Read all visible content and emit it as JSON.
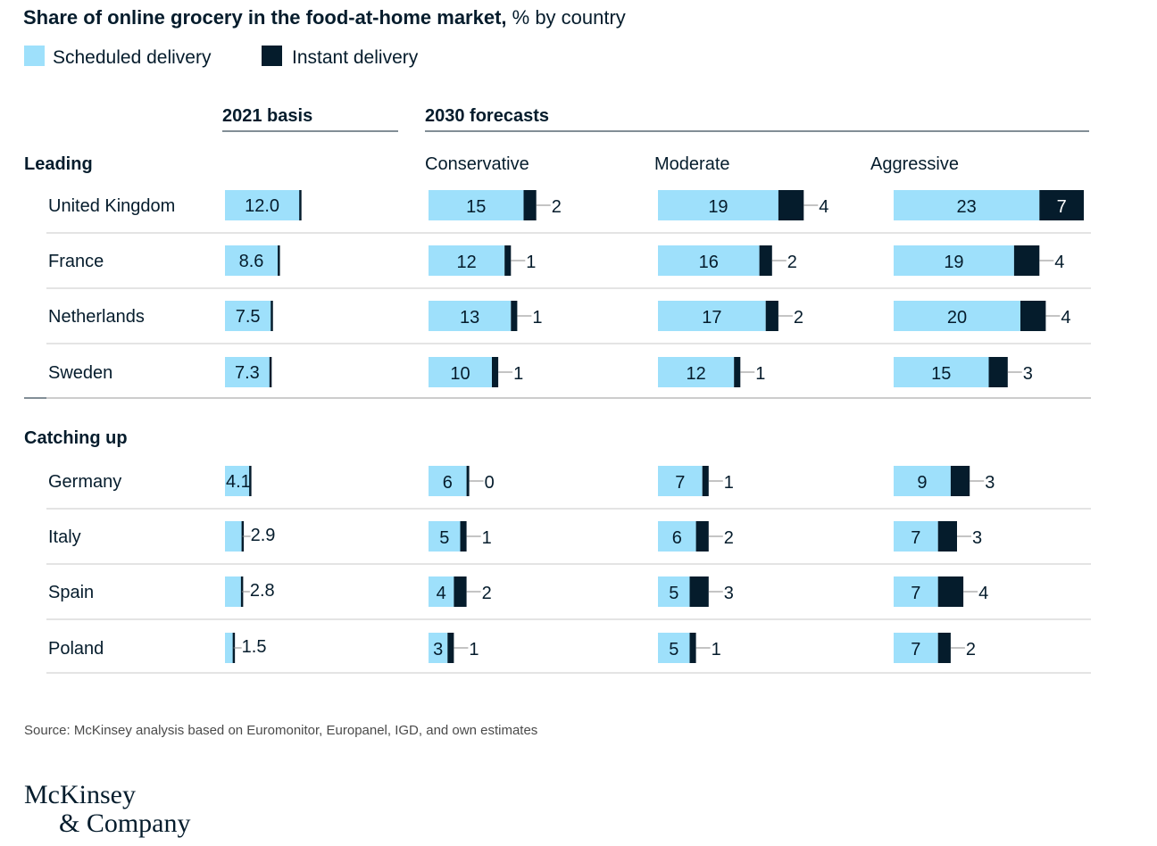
{
  "title": {
    "bold": "Share of online grocery in the food-at-home market,",
    "light": " % by country"
  },
  "legend": [
    {
      "name": "Scheduled delivery",
      "color": "#9ee0fb"
    },
    {
      "name": "Instant delivery",
      "color": "#051c2c"
    }
  ],
  "column_headers": {
    "basis": "2021 basis",
    "forecasts": "2030 forecasts"
  },
  "scenarios": [
    "Conservative",
    "Moderate",
    "Aggressive"
  ],
  "source": "Source: McKinsey analysis based on Euromonitor, Europanel, IGD, and own estimates",
  "logo": {
    "line1": "McKinsey",
    "line2": "& Company"
  },
  "chart_data": {
    "type": "bar",
    "stacked": true,
    "unit": "%",
    "colors": {
      "scheduled": "#9ee0fb",
      "instant": "#051c2c"
    },
    "groups": [
      {
        "name": "Leading",
        "countries": [
          {
            "name": "United Kingdom",
            "basis": "12.0",
            "conservative": [
              15,
              2
            ],
            "moderate": [
              19,
              4
            ],
            "aggressive": [
              23,
              7
            ]
          },
          {
            "name": "France",
            "basis": "8.6",
            "conservative": [
              12,
              1
            ],
            "moderate": [
              16,
              2
            ],
            "aggressive": [
              19,
              4
            ]
          },
          {
            "name": "Netherlands",
            "basis": "7.5",
            "conservative": [
              13,
              1
            ],
            "moderate": [
              17,
              2
            ],
            "aggressive": [
              20,
              4
            ]
          },
          {
            "name": "Sweden",
            "basis": "7.3",
            "conservative": [
              10,
              1
            ],
            "moderate": [
              12,
              1
            ],
            "aggressive": [
              15,
              3
            ]
          }
        ]
      },
      {
        "name": "Catching up",
        "countries": [
          {
            "name": "Germany",
            "basis": "4.1",
            "conservative": [
              6,
              0
            ],
            "moderate": [
              7,
              1
            ],
            "aggressive": [
              9,
              3
            ]
          },
          {
            "name": "Italy",
            "basis": "2.9",
            "conservative": [
              5,
              1
            ],
            "moderate": [
              6,
              2
            ],
            "aggressive": [
              7,
              3
            ]
          },
          {
            "name": "Spain",
            "basis": "2.8",
            "conservative": [
              4,
              2
            ],
            "moderate": [
              5,
              3
            ],
            "aggressive": [
              7,
              4
            ]
          },
          {
            "name": "Poland",
            "basis": "1.5",
            "conservative": [
              3,
              1
            ],
            "moderate": [
              5,
              1
            ],
            "aggressive": [
              7,
              2
            ]
          }
        ]
      }
    ]
  }
}
